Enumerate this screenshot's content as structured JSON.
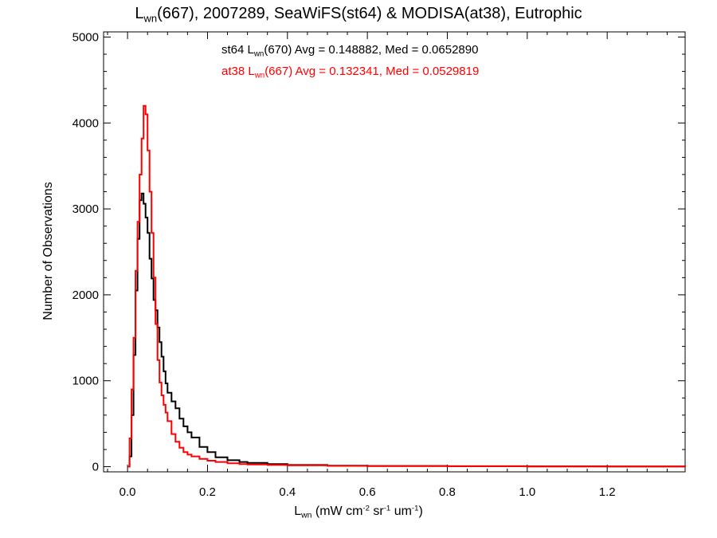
{
  "chart_data": {
    "type": "line",
    "title": {
      "prefix": "L",
      "sub": "wn",
      "rest": "(667), 2007289, SeaWiFS(st64) & MODISA(at38), Eutrophic"
    },
    "xlabel": {
      "prefix": "L",
      "sub": "wn",
      "p1": " (mW cm",
      "sup1": "-2",
      "p2": " sr",
      "sup2": "-1",
      "p3": " um",
      "sup3": "-1",
      "p4": ")"
    },
    "ylabel": "Number of Observations",
    "xlim": [
      -0.06,
      1.395
    ],
    "ylim": [
      -60,
      5060
    ],
    "x_ticks": [
      {
        "v": 0.0,
        "label": "0.0"
      },
      {
        "v": 0.2,
        "label": "0.2"
      },
      {
        "v": 0.4,
        "label": "0.4"
      },
      {
        "v": 0.6,
        "label": "0.6"
      },
      {
        "v": 0.8,
        "label": "0.8"
      },
      {
        "v": 1.0,
        "label": "1.0"
      },
      {
        "v": 1.2,
        "label": "1.2"
      }
    ],
    "y_ticks": [
      {
        "v": 0,
        "label": "0"
      },
      {
        "v": 1000,
        "label": "1000"
      },
      {
        "v": 2000,
        "label": "2000"
      },
      {
        "v": 3000,
        "label": "3000"
      },
      {
        "v": 4000,
        "label": "4000"
      },
      {
        "v": 5000,
        "label": "5000"
      }
    ],
    "annotations": [
      {
        "prefix": "st64 L",
        "sub": "wn",
        "rest": "(670) Avg = 0.148882, Med = 0.0652890"
      },
      {
        "prefix": "at38 L",
        "sub": "wn",
        "rest": "(667) Avg = 0.132341, Med = 0.0529819"
      }
    ],
    "series": [
      {
        "color": "#000000",
        "x": [
          0.0,
          0.005,
          0.01,
          0.015,
          0.02,
          0.025,
          0.03,
          0.035,
          0.04,
          0.045,
          0.05,
          0.055,
          0.06,
          0.065,
          0.07,
          0.075,
          0.08,
          0.085,
          0.09,
          0.095,
          0.1,
          0.11,
          0.12,
          0.13,
          0.14,
          0.15,
          0.16,
          0.18,
          0.2,
          0.22,
          0.25,
          0.28,
          0.3,
          0.35,
          0.4,
          0.5,
          0.6,
          0.8,
          1.0,
          1.2,
          1.395
        ],
        "y": [
          0,
          120,
          600,
          1300,
          2050,
          2650,
          3100,
          3180,
          3060,
          2900,
          2720,
          2420,
          2190,
          1940,
          1820,
          1620,
          1450,
          1280,
          1110,
          970,
          860,
          760,
          680,
          560,
          470,
          400,
          340,
          230,
          170,
          110,
          75,
          55,
          45,
          30,
          20,
          12,
          9,
          6,
          4,
          2,
          0
        ]
      },
      {
        "color": "#ff0000",
        "x": [
          0.0,
          0.005,
          0.01,
          0.015,
          0.02,
          0.025,
          0.03,
          0.035,
          0.04,
          0.045,
          0.05,
          0.055,
          0.06,
          0.065,
          0.07,
          0.075,
          0.08,
          0.085,
          0.09,
          0.095,
          0.1,
          0.11,
          0.12,
          0.13,
          0.14,
          0.15,
          0.16,
          0.18,
          0.2,
          0.22,
          0.25,
          0.28,
          0.3,
          0.35,
          0.4,
          0.5,
          0.6,
          0.8,
          1.0,
          1.2,
          1.395
        ],
        "y": [
          0,
          330,
          900,
          1500,
          2280,
          2850,
          3400,
          3820,
          4200,
          4100,
          3680,
          3200,
          2720,
          2200,
          1660,
          1240,
          980,
          830,
          720,
          630,
          530,
          380,
          290,
          220,
          170,
          140,
          120,
          90,
          70,
          55,
          40,
          30,
          25,
          20,
          15,
          10,
          8,
          5,
          3,
          2,
          0
        ]
      }
    ]
  }
}
